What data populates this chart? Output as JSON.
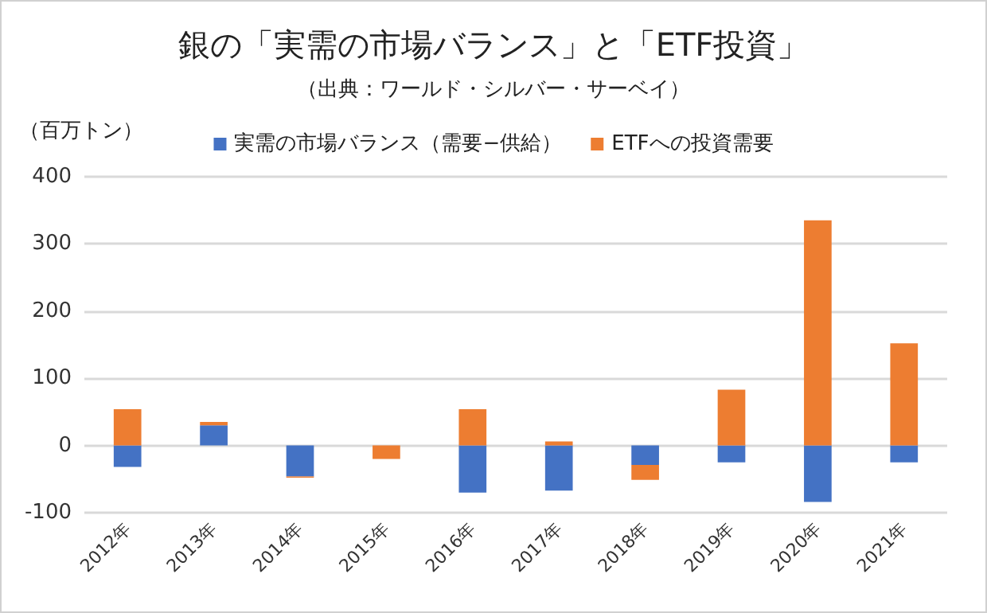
{
  "chart_data": {
    "type": "bar",
    "title": "銀の「実需の市場バランス」と「ETF投資」",
    "subtitle": "（出典：ワールド・シルバー・サーベイ）",
    "ylabel": "（百万トン）",
    "categories": [
      "2012年",
      "2013年",
      "2014年",
      "2015年",
      "2016年",
      "2017年",
      "2018年",
      "2019年",
      "2020年",
      "2021年"
    ],
    "series": [
      {
        "name": "実需の市場バランス（需要−供給）",
        "color": "#4472c4",
        "values": [
          -32,
          30,
          -46,
          0,
          -70,
          -67,
          -29,
          -25,
          -84,
          -25
        ]
      },
      {
        "name": "ETFへの投資需要",
        "color": "#ed7d31",
        "values": [
          54,
          5,
          -2,
          -20,
          54,
          6,
          -22,
          83,
          335,
          152
        ]
      }
    ],
    "stacked": true,
    "ylim": [
      -100,
      400
    ],
    "yticks": [
      -100,
      0,
      100,
      200,
      300,
      400
    ],
    "grid": "y",
    "legend": "top"
  }
}
